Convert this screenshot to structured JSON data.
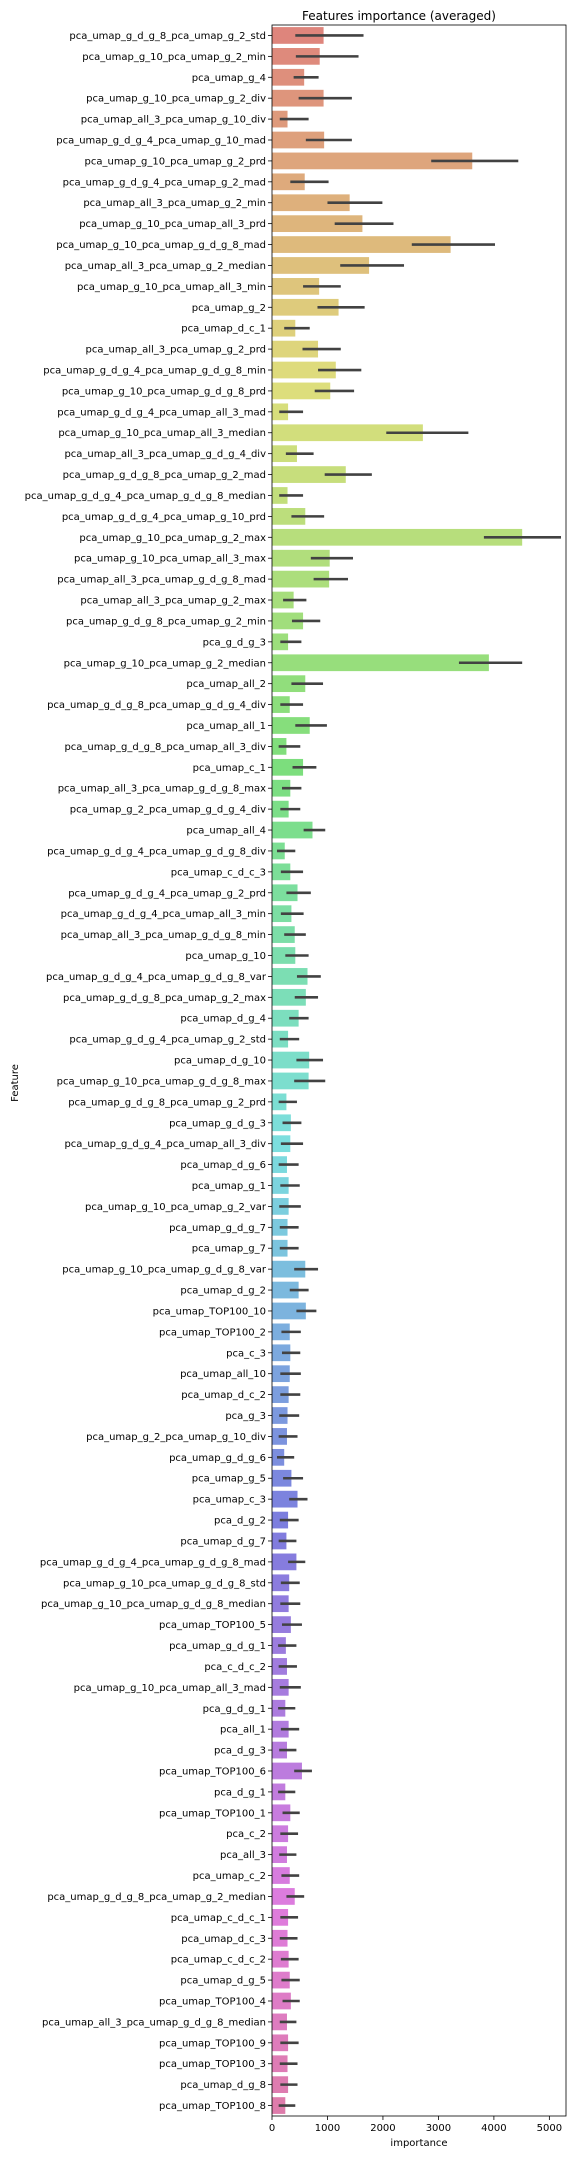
{
  "chart_data": {
    "type": "bar",
    "orientation": "horizontal",
    "title": "Features importance (averaged)",
    "xlabel": "importance",
    "ylabel": "Feature",
    "xlim": [
      0,
      5300
    ],
    "xticks": [
      0,
      1000,
      2000,
      3000,
      4000,
      5000
    ],
    "grid": false,
    "legend": "none",
    "error_bars": true,
    "categories": [
      "pca_umap_g_d_g_8_pca_umap_g_2_std",
      "pca_umap_g_10_pca_umap_g_2_min",
      "pca_umap_g_4",
      "pca_umap_g_10_pca_umap_g_2_div",
      "pca_umap_all_3_pca_umap_g_10_div",
      "pca_umap_g_d_g_4_pca_umap_g_10_mad",
      "pca_umap_g_10_pca_umap_g_2_prd",
      "pca_umap_g_d_g_4_pca_umap_g_2_mad",
      "pca_umap_all_3_pca_umap_g_2_min",
      "pca_umap_g_10_pca_umap_all_3_prd",
      "pca_umap_g_10_pca_umap_g_d_g_8_mad",
      "pca_umap_all_3_pca_umap_g_2_median",
      "pca_umap_g_10_pca_umap_all_3_min",
      "pca_umap_g_2",
      "pca_umap_d_c_1",
      "pca_umap_all_3_pca_umap_g_2_prd",
      "pca_umap_g_d_g_4_pca_umap_g_d_g_8_min",
      "pca_umap_g_10_pca_umap_g_d_g_8_prd",
      "pca_umap_g_d_g_4_pca_umap_all_3_mad",
      "pca_umap_g_10_pca_umap_all_3_median",
      "pca_umap_all_3_pca_umap_g_d_g_4_div",
      "pca_umap_g_d_g_8_pca_umap_g_2_mad",
      "pca_umap_g_d_g_4_pca_umap_g_d_g_8_median",
      "pca_umap_g_d_g_4_pca_umap_g_10_prd",
      "pca_umap_g_10_pca_umap_g_2_max",
      "pca_umap_g_10_pca_umap_all_3_max",
      "pca_umap_all_3_pca_umap_g_d_g_8_mad",
      "pca_umap_all_3_pca_umap_g_2_max",
      "pca_umap_g_d_g_8_pca_umap_g_2_min",
      "pca_g_d_g_3",
      "pca_umap_g_10_pca_umap_g_2_median",
      "pca_umap_all_2",
      "pca_umap_g_d_g_8_pca_umap_g_d_g_4_div",
      "pca_umap_all_1",
      "pca_umap_g_d_g_8_pca_umap_all_3_div",
      "pca_umap_c_1",
      "pca_umap_all_3_pca_umap_g_d_g_8_max",
      "pca_umap_g_2_pca_umap_g_d_g_4_div",
      "pca_umap_all_4",
      "pca_umap_g_d_g_4_pca_umap_g_d_g_8_div",
      "pca_umap_c_d_c_3",
      "pca_umap_g_d_g_4_pca_umap_g_2_prd",
      "pca_umap_g_d_g_4_pca_umap_all_3_min",
      "pca_umap_all_3_pca_umap_g_d_g_8_min",
      "pca_umap_g_10",
      "pca_umap_g_d_g_4_pca_umap_g_d_g_8_var",
      "pca_umap_g_d_g_8_pca_umap_g_2_max",
      "pca_umap_d_g_4",
      "pca_umap_g_d_g_4_pca_umap_g_2_std",
      "pca_umap_d_g_10",
      "pca_umap_g_10_pca_umap_g_d_g_8_max",
      "pca_umap_g_d_g_8_pca_umap_g_2_prd",
      "pca_umap_g_d_g_3",
      "pca_umap_g_d_g_4_pca_umap_all_3_div",
      "pca_umap_d_g_6",
      "pca_umap_g_1",
      "pca_umap_g_10_pca_umap_g_2_var",
      "pca_umap_g_d_g_7",
      "pca_umap_g_7",
      "pca_umap_g_10_pca_umap_g_d_g_8_var",
      "pca_umap_d_g_2",
      "pca_umap_TOP100_10",
      "pca_umap_TOP100_2",
      "pca_c_3",
      "pca_umap_all_10",
      "pca_umap_d_c_2",
      "pca_g_3",
      "pca_umap_g_2_pca_umap_g_10_div",
      "pca_umap_g_d_g_6",
      "pca_umap_g_5",
      "pca_umap_c_3",
      "pca_d_g_2",
      "pca_umap_d_g_7",
      "pca_umap_g_d_g_4_pca_umap_g_d_g_8_mad",
      "pca_umap_g_10_pca_umap_g_d_g_8_std",
      "pca_umap_g_10_pca_umap_g_d_g_8_median",
      "pca_umap_TOP100_5",
      "pca_umap_g_d_g_1",
      "pca_c_d_c_2",
      "pca_umap_g_10_pca_umap_all_3_mad",
      "pca_g_d_g_1",
      "pca_all_1",
      "pca_d_g_3",
      "pca_umap_TOP100_6",
      "pca_d_g_1",
      "pca_umap_TOP100_1",
      "pca_c_2",
      "pca_all_3",
      "pca_umap_c_2",
      "pca_umap_g_d_g_8_pca_umap_g_2_median",
      "pca_umap_c_d_c_1",
      "pca_umap_d_c_3",
      "pca_umap_c_d_c_2",
      "pca_umap_d_g_5",
      "pca_umap_TOP100_4",
      "pca_umap_all_3_pca_umap_g_d_g_8_median",
      "pca_umap_TOP100_9",
      "pca_umap_TOP100_3",
      "pca_umap_d_g_8",
      "pca_umap_TOP100_8"
    ],
    "values": [
      930,
      860,
      580,
      930,
      280,
      940,
      3610,
      590,
      1400,
      1630,
      3220,
      1750,
      850,
      1200,
      420,
      830,
      1150,
      1050,
      290,
      2720,
      450,
      1330,
      280,
      600,
      4510,
      1040,
      1030,
      390,
      560,
      290,
      3910,
      600,
      320,
      680,
      260,
      560,
      330,
      300,
      730,
      230,
      330,
      460,
      350,
      410,
      420,
      640,
      610,
      480,
      290,
      670,
      660,
      260,
      340,
      330,
      270,
      300,
      300,
      280,
      280,
      600,
      480,
      610,
      320,
      330,
      320,
      300,
      280,
      270,
      220,
      350,
      460,
      290,
      260,
      440,
      310,
      300,
      340,
      250,
      270,
      300,
      240,
      300,
      270,
      540,
      240,
      330,
      290,
      270,
      320,
      410,
      290,
      280,
      300,
      320,
      340,
      270,
      290,
      280,
      290,
      240
    ],
    "errors": [
      [
        420,
        1650
      ],
      [
        430,
        1560
      ],
      [
        390,
        840
      ],
      [
        480,
        1440
      ],
      [
        140,
        660
      ],
      [
        610,
        1440
      ],
      [
        2870,
        4440
      ],
      [
        330,
        1020
      ],
      [
        1000,
        1990
      ],
      [
        1130,
        2190
      ],
      [
        2520,
        4020
      ],
      [
        1230,
        2380
      ],
      [
        560,
        1240
      ],
      [
        820,
        1670
      ],
      [
        220,
        680
      ],
      [
        550,
        1240
      ],
      [
        830,
        1610
      ],
      [
        770,
        1480
      ],
      [
        130,
        560
      ],
      [
        2060,
        3540
      ],
      [
        250,
        750
      ],
      [
        950,
        1800
      ],
      [
        130,
        560
      ],
      [
        350,
        940
      ],
      [
        3820,
        5210
      ],
      [
        700,
        1460
      ],
      [
        750,
        1370
      ],
      [
        200,
        620
      ],
      [
        360,
        870
      ],
      [
        150,
        530
      ],
      [
        3370,
        4510
      ],
      [
        350,
        920
      ],
      [
        150,
        560
      ],
      [
        420,
        990
      ],
      [
        120,
        510
      ],
      [
        370,
        800
      ],
      [
        180,
        530
      ],
      [
        150,
        510
      ],
      [
        570,
        960
      ],
      [
        90,
        420
      ],
      [
        160,
        560
      ],
      [
        260,
        700
      ],
      [
        160,
        570
      ],
      [
        220,
        610
      ],
      [
        240,
        660
      ],
      [
        450,
        880
      ],
      [
        410,
        830
      ],
      [
        310,
        660
      ],
      [
        140,
        490
      ],
      [
        440,
        920
      ],
      [
        400,
        960
      ],
      [
        120,
        450
      ],
      [
        190,
        530
      ],
      [
        160,
        560
      ],
      [
        120,
        480
      ],
      [
        150,
        500
      ],
      [
        130,
        520
      ],
      [
        140,
        480
      ],
      [
        140,
        480
      ],
      [
        400,
        830
      ],
      [
        320,
        660
      ],
      [
        440,
        800
      ],
      [
        170,
        520
      ],
      [
        180,
        510
      ],
      [
        150,
        520
      ],
      [
        150,
        510
      ],
      [
        130,
        490
      ],
      [
        120,
        460
      ],
      [
        90,
        400
      ],
      [
        200,
        560
      ],
      [
        310,
        640
      ],
      [
        140,
        480
      ],
      [
        120,
        440
      ],
      [
        290,
        600
      ],
      [
        160,
        500
      ],
      [
        150,
        510
      ],
      [
        180,
        540
      ],
      [
        110,
        440
      ],
      [
        120,
        450
      ],
      [
        140,
        520
      ],
      [
        110,
        420
      ],
      [
        160,
        490
      ],
      [
        130,
        440
      ],
      [
        400,
        720
      ],
      [
        110,
        420
      ],
      [
        190,
        500
      ],
      [
        150,
        470
      ],
      [
        130,
        440
      ],
      [
        170,
        490
      ],
      [
        260,
        580
      ],
      [
        150,
        470
      ],
      [
        140,
        460
      ],
      [
        160,
        480
      ],
      [
        170,
        500
      ],
      [
        190,
        500
      ],
      [
        140,
        440
      ],
      [
        150,
        480
      ],
      [
        140,
        460
      ],
      [
        150,
        460
      ],
      [
        120,
        420
      ]
    ]
  }
}
